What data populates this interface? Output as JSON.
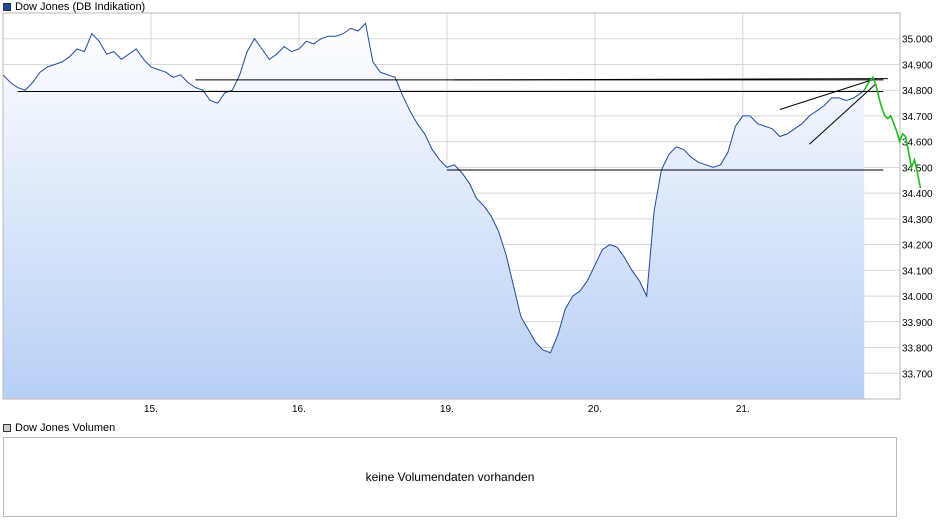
{
  "main_legend": {
    "label": "Dow Jones (DB Indikation)",
    "color": "#1f4aa0"
  },
  "volume_legend": {
    "label": "Dow Jones Volumen",
    "color": "#cccccc"
  },
  "volume_message": "keine Volumendaten vorhanden",
  "chart_data": {
    "type": "area",
    "title": "Dow Jones (DB Indikation)",
    "xlabel": "",
    "ylabel": "",
    "x_tick_labels": [
      "15.",
      "16.",
      "19.",
      "20.",
      "21."
    ],
    "y_tick_labels": [
      "35.000",
      "34.900",
      "34.800",
      "34.700",
      "34.600",
      "34.500",
      "34.400",
      "34.300",
      "34.200",
      "34.100",
      "34.000",
      "33.900",
      "33.800",
      "33.700"
    ],
    "y_ticks": [
      35000,
      34900,
      34800,
      34700,
      34600,
      34500,
      34400,
      34300,
      34200,
      34100,
      34000,
      33900,
      33800,
      33700
    ],
    "ylim": [
      33600,
      35100
    ],
    "xlim": [
      0,
      5.9
    ],
    "grid": true,
    "line_color": "#1f4aa0",
    "fill_top_color": "#ffffff",
    "fill_bottom_color": "#b7cff5",
    "series": [
      {
        "x": [
          0,
          0.05,
          0.1,
          0.15,
          0.2,
          0.25,
          0.3,
          0.35,
          0.4,
          0.45,
          0.5,
          0.55,
          0.6,
          0.65,
          0.7,
          0.75,
          0.8,
          0.85,
          0.9,
          0.95,
          1.0,
          1.05,
          1.1,
          1.15,
          1.2,
          1.25,
          1.3,
          1.35,
          1.4,
          1.45,
          1.5,
          1.55,
          1.6,
          1.65,
          1.7,
          1.75,
          1.8,
          1.85,
          1.9,
          1.95,
          2.0,
          2.05,
          2.1,
          2.15,
          2.2,
          2.25,
          2.3,
          2.35,
          2.4,
          2.45,
          2.5,
          2.55,
          2.6,
          2.65,
          2.7,
          2.75,
          2.8,
          2.85,
          2.9,
          2.95,
          3.0,
          3.05,
          3.1,
          3.15,
          3.2,
          3.25,
          3.3,
          3.35,
          3.4,
          3.45,
          3.5,
          3.55,
          3.6,
          3.65,
          3.7,
          3.75,
          3.8,
          3.85,
          3.9,
          3.95,
          4.0,
          4.05,
          4.1,
          4.15,
          4.2,
          4.25,
          4.3,
          4.35,
          4.4,
          4.45,
          4.5,
          4.55,
          4.6,
          4.65,
          4.7,
          4.75,
          4.8,
          4.85,
          4.9,
          4.95,
          5.0,
          5.05,
          5.1,
          5.15,
          5.2,
          5.25,
          5.3,
          5.35,
          5.4,
          5.45,
          5.5,
          5.55,
          5.6,
          5.65,
          5.7,
          5.75,
          5.8,
          5.82
        ],
        "values": [
          34860,
          34830,
          34810,
          34800,
          34830,
          34870,
          34890,
          34900,
          34910,
          34930,
          34960,
          34950,
          35020,
          34990,
          34940,
          34950,
          34920,
          34940,
          34960,
          34920,
          34890,
          34880,
          34870,
          34850,
          34860,
          34830,
          34810,
          34800,
          34760,
          34750,
          34790,
          34800,
          34860,
          34950,
          35000,
          34960,
          34920,
          34940,
          34970,
          34950,
          34960,
          34990,
          34980,
          35000,
          35010,
          35010,
          35020,
          35040,
          35030,
          35060,
          34910,
          34870,
          34860,
          34850,
          34780,
          34720,
          34670,
          34630,
          34570,
          34530,
          34500,
          34510,
          34480,
          34440,
          34380,
          34350,
          34310,
          34250,
          34160,
          34040,
          33920,
          33870,
          33820,
          33790,
          33780,
          33850,
          33950,
          34000,
          34020,
          34060,
          34120,
          34180,
          34200,
          34190,
          34150,
          34100,
          34060,
          34000,
          34330,
          34490,
          34550,
          34580,
          34570,
          34540,
          34520,
          34510,
          34500,
          34510,
          34560,
          34660,
          34700,
          34700,
          34670,
          34660,
          34650,
          34620,
          34630,
          34650,
          34670,
          34700,
          34720,
          34740,
          34770,
          34770,
          34760,
          34770,
          34790,
          34800
        ],
        "style": "line+area"
      }
    ],
    "annotations": {
      "horizontal_lines": [
        {
          "y": 34795,
          "x_from": 0.1,
          "x_to": 5.95
        },
        {
          "y": 34840,
          "x_from": 1.3,
          "x_to": 5.95
        },
        {
          "y": 34490,
          "x_from": 3.0,
          "x_to": 5.95
        }
      ],
      "sloped_lines": [
        {
          "x1": 3.05,
          "y1": 34840,
          "x2": 5.98,
          "y2": 34845
        },
        {
          "x1": 5.25,
          "y1": 34725,
          "x2": 5.9,
          "y2": 34845
        },
        {
          "x1": 5.45,
          "y1": 34590,
          "x2": 5.9,
          "y2": 34825
        }
      ],
      "forecast_color": "#22bb22",
      "forecast": {
        "x": [
          5.82,
          5.85,
          5.88,
          5.9,
          5.92,
          5.94,
          5.96,
          5.98,
          6.0,
          6.02,
          6.04,
          6.06,
          6.08,
          6.1,
          6.12,
          6.14,
          6.16,
          6.18,
          6.2
        ],
        "y": [
          34800,
          34830,
          34850,
          34820,
          34770,
          34730,
          34700,
          34690,
          34700,
          34670,
          34640,
          34600,
          34630,
          34620,
          34560,
          34500,
          34530,
          34480,
          34420
        ]
      }
    }
  }
}
